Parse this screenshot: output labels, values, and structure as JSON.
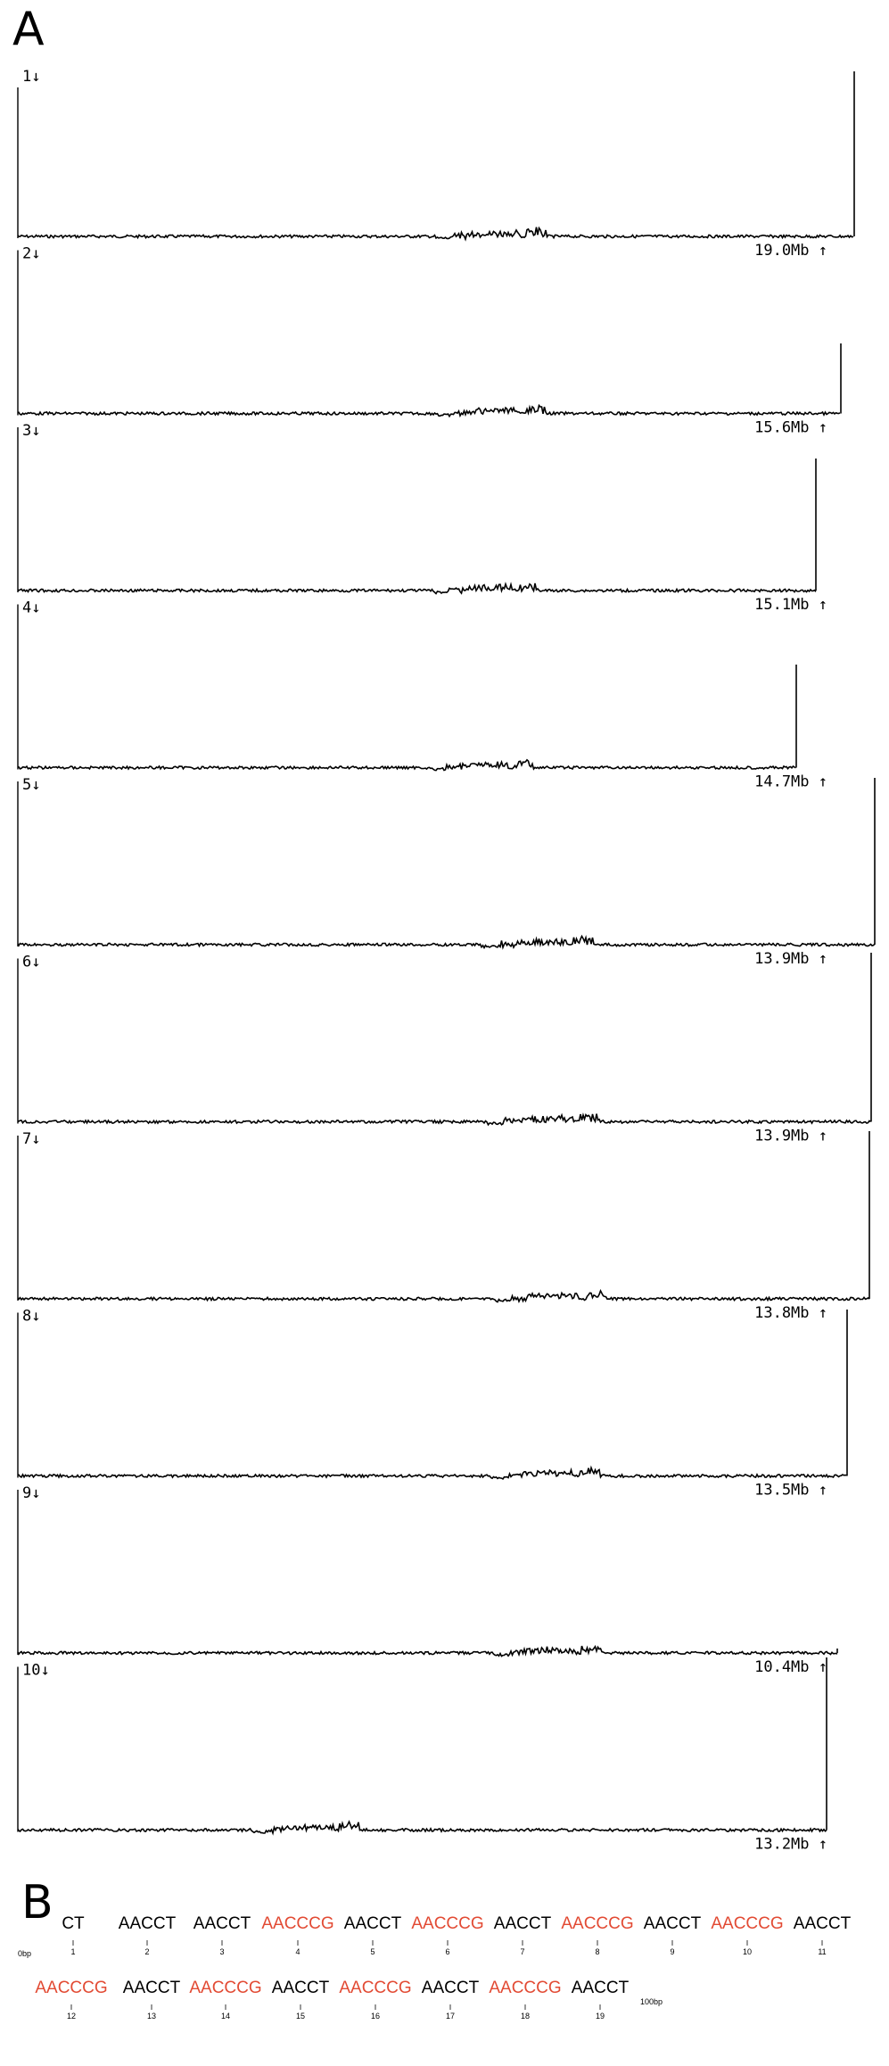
{
  "chart_data": [
    {
      "type": "line",
      "panel": "A",
      "tracks": [
        {
          "label": "1↓",
          "size": "19.0Mb ↑",
          "size_mb": 19.0
        },
        {
          "label": "2↓",
          "size": "15.6Mb ↑",
          "size_mb": 15.6
        },
        {
          "label": "3↓",
          "size": "15.1Mb ↑",
          "size_mb": 15.1
        },
        {
          "label": "4↓",
          "size": "14.7Mb ↑",
          "size_mb": 14.7
        },
        {
          "label": "5↓",
          "size": "13.9Mb ↑",
          "size_mb": 13.9
        },
        {
          "label": "6↓",
          "size": "13.9Mb ↑",
          "size_mb": 13.9
        },
        {
          "label": "7↓",
          "size": "13.8Mb ↑",
          "size_mb": 13.8
        },
        {
          "label": "8↓",
          "size": "13.5Mb ↑",
          "size_mb": 13.5
        },
        {
          "label": "9↓",
          "size": "10.4Mb ↑",
          "size_mb": 10.4
        },
        {
          "label": "10↓",
          "size": "13.2Mb ↑",
          "size_mb": 13.2
        }
      ]
    },
    {
      "type": "table",
      "panel": "B",
      "start_label": "0bp",
      "end_label": "100bp",
      "motifs": [
        {
          "text": "CT",
          "index": "1",
          "highlight": false
        },
        {
          "text": "AACCT",
          "index": "2",
          "highlight": false
        },
        {
          "text": "AACCT",
          "index": "3",
          "highlight": false
        },
        {
          "text": "AACCCG",
          "index": "4",
          "highlight": true
        },
        {
          "text": "AACCT",
          "index": "5",
          "highlight": false
        },
        {
          "text": "AACCCG",
          "index": "6",
          "highlight": true
        },
        {
          "text": "AACCT",
          "index": "7",
          "highlight": false
        },
        {
          "text": "AACCCG",
          "index": "8",
          "highlight": true
        },
        {
          "text": "AACCT",
          "index": "9",
          "highlight": false
        },
        {
          "text": "AACCCG",
          "index": "10",
          "highlight": true
        },
        {
          "text": "AACCT",
          "index": "11",
          "highlight": false
        },
        {
          "text": "AACCCG",
          "index": "12",
          "highlight": true
        },
        {
          "text": "AACCT",
          "index": "13",
          "highlight": false
        },
        {
          "text": "AACCCG",
          "index": "14",
          "highlight": true
        },
        {
          "text": "AACCT",
          "index": "15",
          "highlight": false
        },
        {
          "text": "AACCCG",
          "index": "16",
          "highlight": true
        },
        {
          "text": "AACCT",
          "index": "17",
          "highlight": false
        },
        {
          "text": "AACCCG",
          "index": "18",
          "highlight": true
        },
        {
          "text": "AACCT",
          "index": "19",
          "highlight": false
        }
      ]
    }
  ],
  "panels": {
    "a": "A",
    "b": "B"
  },
  "colors": {
    "highlight": "#e24a33",
    "normal": "#000000"
  }
}
